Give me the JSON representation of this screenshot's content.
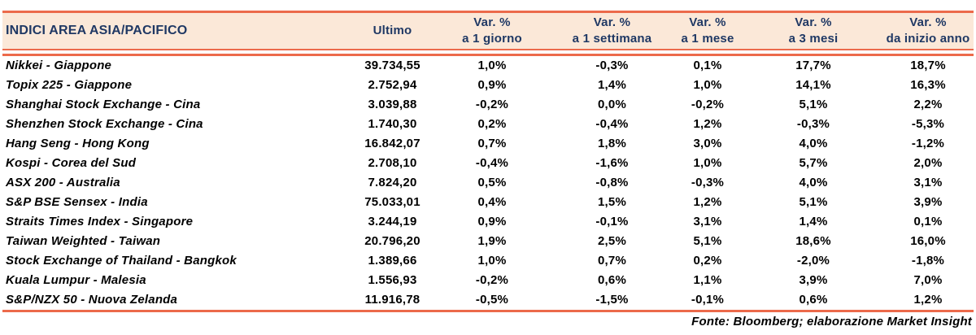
{
  "header": {
    "title": "INDICI AREA ASIA/PACIFICO",
    "ultimo": "Ultimo",
    "var_label": "Var. %",
    "periods": [
      "a 1 giorno",
      "a 1 settimana",
      "a 1 mese",
      "a 3 mesi",
      "da inizio anno"
    ]
  },
  "footer": {
    "source": "Fonte: Bloomberg; elaborazione Market Insight"
  },
  "colors": {
    "accent_orange": "#EC6A4B",
    "header_bg": "#FBE8D8",
    "header_text": "#1F3864",
    "body_text": "#000000"
  },
  "chart_data": {
    "type": "table",
    "title": "INDICI AREA ASIA/PACIFICO",
    "columns": [
      "INDICI AREA ASIA/PACIFICO",
      "Ultimo",
      "Var. % a 1 giorno",
      "Var. % a 1 settimana",
      "Var. % a 1 mese",
      "Var. % a 3 mesi",
      "Var. % da inizio anno"
    ],
    "rows": [
      [
        "Nikkei - Giappone",
        "39.734,55",
        "1,0%",
        "-0,3%",
        "0,1%",
        "17,7%",
        "18,7%"
      ],
      [
        "Topix 225 - Giappone",
        "2.752,94",
        "0,9%",
        "1,4%",
        "1,0%",
        "14,1%",
        "16,3%"
      ],
      [
        "Shanghai Stock Exchange - Cina",
        "3.039,88",
        "-0,2%",
        "0,0%",
        "-0,2%",
        "5,1%",
        "2,2%"
      ],
      [
        "Shenzhen Stock Exchange - Cina",
        "1.740,30",
        "0,2%",
        "-0,4%",
        "1,2%",
        "-0,3%",
        "-5,3%"
      ],
      [
        "Hang Seng - Hong Kong",
        "16.842,07",
        "0,7%",
        "1,8%",
        "3,0%",
        "4,0%",
        "-1,2%"
      ],
      [
        "Kospi - Corea del Sud",
        "2.708,10",
        "-0,4%",
        "-1,6%",
        "1,0%",
        "5,7%",
        "2,0%"
      ],
      [
        "ASX 200 - Australia",
        "7.824,20",
        "0,5%",
        "-0,8%",
        "-0,3%",
        "4,0%",
        "3,1%"
      ],
      [
        "S&P BSE Sensex - India",
        "75.033,01",
        "0,4%",
        "1,5%",
        "1,2%",
        "5,1%",
        "3,9%"
      ],
      [
        "Straits Times Index - Singapore",
        "3.244,19",
        "0,9%",
        "-0,1%",
        "3,1%",
        "1,4%",
        "0,1%"
      ],
      [
        "Taiwan Weighted - Taiwan",
        "20.796,20",
        "1,9%",
        "2,5%",
        "5,1%",
        "18,6%",
        "16,0%"
      ],
      [
        "Stock Exchange of Thailand - Bangkok",
        "1.389,66",
        "1,0%",
        "0,7%",
        "0,2%",
        "-2,0%",
        "-1,8%"
      ],
      [
        "Kuala Lumpur - Malesia",
        "1.556,93",
        "-0,2%",
        "0,6%",
        "1,1%",
        "3,9%",
        "7,0%"
      ],
      [
        "S&P/NZX 50 - Nuova Zelanda",
        "11.916,78",
        "-0,5%",
        "-1,5%",
        "-0,1%",
        "0,6%",
        "1,2%"
      ]
    ],
    "source_note": "Fonte: Bloomberg; elaborazione Market Insight"
  }
}
